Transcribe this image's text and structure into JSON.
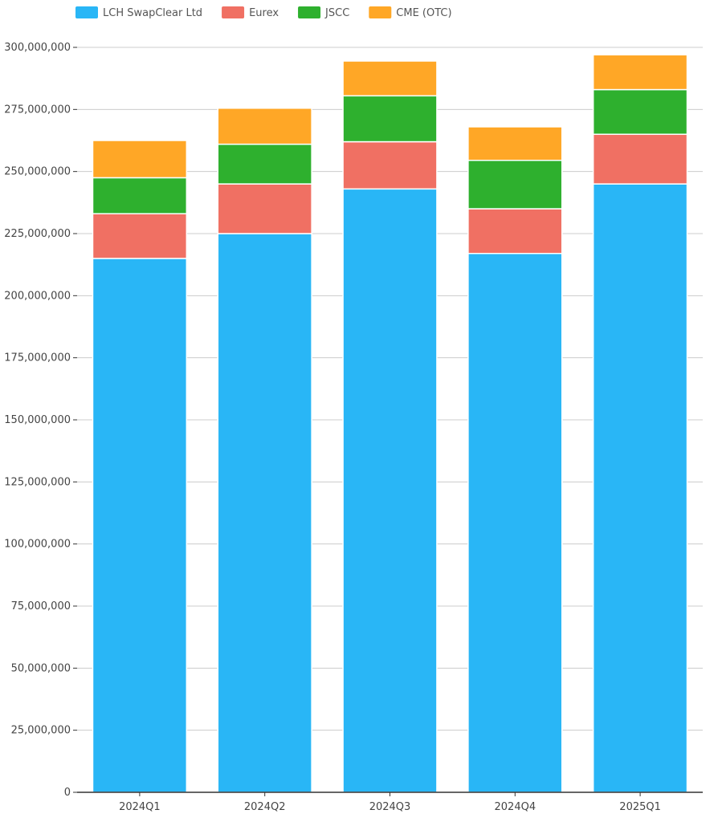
{
  "chart_data": {
    "type": "bar",
    "stacked": true,
    "categories": [
      "2024Q1",
      "2024Q2",
      "2024Q3",
      "2024Q4",
      "2025Q1"
    ],
    "series": [
      {
        "name": "LCH SwapClear Ltd",
        "color": "#29b6f6",
        "values": [
          215000000,
          225000000,
          243000000,
          217000000,
          245000000
        ]
      },
      {
        "name": "Eurex",
        "color": "#f07063",
        "values": [
          18000000,
          20000000,
          19000000,
          18000000,
          20000000
        ]
      },
      {
        "name": "JSCC",
        "color": "#2eb02e",
        "values": [
          14500000,
          16000000,
          18500000,
          19500000,
          18000000
        ]
      },
      {
        "name": "CME (OTC)",
        "color": "#ffa726",
        "values": [
          15000000,
          14500000,
          14000000,
          13500000,
          14000000
        ]
      }
    ],
    "ylim": [
      0,
      300000000
    ],
    "yticks": [
      "0",
      "25,000,000",
      "50,000,000",
      "75,000,000",
      "100,000,000",
      "125,000,000",
      "150,000,000",
      "175,000,000",
      "200,000,000",
      "225,000,000",
      "250,000,000",
      "275,000,000",
      "300,000,000"
    ],
    "grid": true,
    "legend_position": "top-left"
  }
}
